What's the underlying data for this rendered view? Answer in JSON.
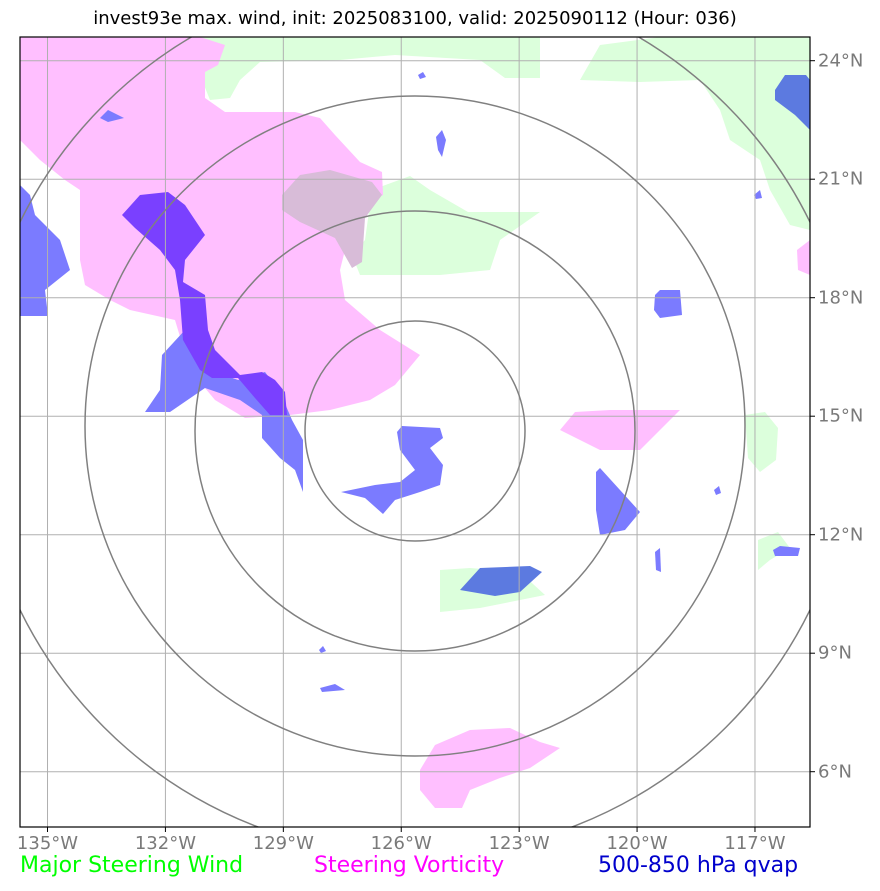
{
  "title": "invest93e max. wind, init: 2025083100, valid: 2025090112 (Hour: 036)",
  "axes": {
    "lon_labels": [
      "135°W",
      "132°W",
      "129°W",
      "126°W",
      "123°W",
      "120°W",
      "117°W"
    ],
    "lat_labels": [
      "24°N",
      "21°N",
      "18°N",
      "15°N",
      "12°N",
      "9°N",
      "6°N"
    ],
    "lon_values": [
      -135,
      -132,
      -129,
      -126,
      -123,
      -120,
      -117
    ],
    "lat_values": [
      24,
      21,
      18,
      15,
      12,
      9,
      6
    ],
    "lon_range": [
      -135.7,
      -115.6
    ],
    "lat_range": [
      4.6,
      24.6
    ]
  },
  "center": {
    "lon": -126.3,
    "lat": 14.6
  },
  "legend": {
    "wind": {
      "label": "Major Steering Wind",
      "color": "#00ff00"
    },
    "vorticity": {
      "label": "Steering Vorticity",
      "color": "#ff00ff"
    },
    "qvap": {
      "label": "500-850 hPa qvap",
      "color": "#0000cc"
    }
  },
  "colors": {
    "wind_fill": "#dcffdc",
    "vort_fill": "#ffbfff",
    "overlap_fill": "#d8bcd8",
    "qvap_fill": "#7b7bff",
    "qvap_dark": "#7a40ff",
    "qvap_mid": "#5c7ae0",
    "grid": "#b0b0b0",
    "ring": "#808080"
  }
}
